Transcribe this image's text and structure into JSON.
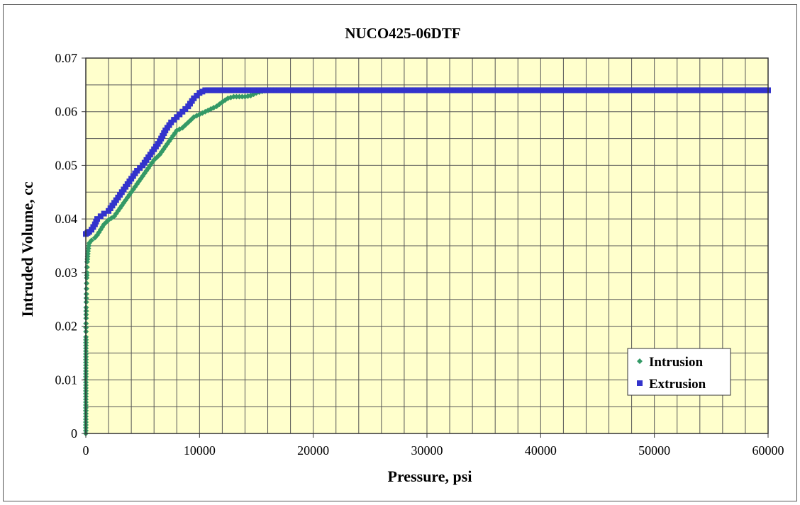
{
  "chart_data": {
    "type": "scatter",
    "title": "NUCO425-06DTF",
    "xlabel": "Pressure, psi",
    "ylabel": "Intruded Volume, cc",
    "xlim": [
      0,
      60000
    ],
    "ylim": [
      0,
      0.07
    ],
    "xticks": [
      "0",
      "10000",
      "20000",
      "30000",
      "40000",
      "50000",
      "60000"
    ],
    "yticks": [
      "0",
      "0.01",
      "0.02",
      "0.03",
      "0.04",
      "0.05",
      "0.06",
      "0.07"
    ],
    "x_gridlines": 30,
    "y_gridlines": 14,
    "grid": true,
    "plot_background": "#ffffcc",
    "legend_position": "bottom-right",
    "series": [
      {
        "name": "Intrusion",
        "color": "#339966",
        "marker": "diamond",
        "points": [
          [
            0,
            0
          ],
          [
            10,
            0.018
          ],
          [
            15,
            0.019
          ],
          [
            20,
            0.0205
          ],
          [
            25,
            0.0215
          ],
          [
            30,
            0.0235
          ],
          [
            40,
            0.0245
          ],
          [
            50,
            0.026
          ],
          [
            60,
            0.027
          ],
          [
            70,
            0.028
          ],
          [
            80,
            0.029
          ],
          [
            90,
            0.0295
          ],
          [
            100,
            0.03
          ],
          [
            110,
            0.031
          ],
          [
            120,
            0.032
          ],
          [
            140,
            0.0325
          ],
          [
            160,
            0.033
          ],
          [
            180,
            0.0335
          ],
          [
            200,
            0.034
          ],
          [
            230,
            0.0345
          ],
          [
            260,
            0.035
          ],
          [
            300,
            0.0355
          ],
          [
            500,
            0.036
          ],
          [
            800,
            0.0365
          ],
          [
            1000,
            0.037
          ],
          [
            1300,
            0.038
          ],
          [
            1600,
            0.039
          ],
          [
            2000,
            0.0398
          ],
          [
            2500,
            0.0405
          ],
          [
            3000,
            0.042
          ],
          [
            3500,
            0.0435
          ],
          [
            4000,
            0.045
          ],
          [
            4500,
            0.0465
          ],
          [
            5000,
            0.048
          ],
          [
            5500,
            0.0495
          ],
          [
            6000,
            0.051
          ],
          [
            6500,
            0.052
          ],
          [
            7000,
            0.0535
          ],
          [
            7500,
            0.055
          ],
          [
            8000,
            0.0565
          ],
          [
            8500,
            0.057
          ],
          [
            9000,
            0.058
          ],
          [
            9500,
            0.059
          ],
          [
            10000,
            0.0595
          ],
          [
            10500,
            0.06
          ],
          [
            11000,
            0.0605
          ],
          [
            11500,
            0.061
          ],
          [
            12000,
            0.0618
          ],
          [
            12500,
            0.0625
          ],
          [
            13000,
            0.0628
          ],
          [
            13500,
            0.0628
          ],
          [
            14000,
            0.0628
          ],
          [
            14500,
            0.063
          ],
          [
            15000,
            0.0635
          ],
          [
            15500,
            0.0638
          ],
          [
            16000,
            0.064
          ],
          [
            17000,
            0.064
          ],
          [
            18000,
            0.064
          ],
          [
            20000,
            0.064
          ],
          [
            22000,
            0.064
          ],
          [
            25000,
            0.064
          ],
          [
            28000,
            0.064
          ],
          [
            30000,
            0.064
          ],
          [
            33000,
            0.064
          ],
          [
            35000,
            0.064
          ]
        ]
      },
      {
        "name": "Extrusion",
        "color": "#3333cc",
        "marker": "square",
        "points": [
          [
            0,
            0.0372
          ],
          [
            150,
            0.0374
          ],
          [
            300,
            0.0376
          ],
          [
            500,
            0.038
          ],
          [
            800,
            0.039
          ],
          [
            1000,
            0.04
          ],
          [
            1300,
            0.0405
          ],
          [
            1600,
            0.041
          ],
          [
            2000,
            0.0415
          ],
          [
            2500,
            0.043
          ],
          [
            3000,
            0.0445
          ],
          [
            3500,
            0.046
          ],
          [
            4000,
            0.0475
          ],
          [
            4500,
            0.049
          ],
          [
            5000,
            0.05
          ],
          [
            5500,
            0.0515
          ],
          [
            6000,
            0.053
          ],
          [
            6500,
            0.0545
          ],
          [
            7000,
            0.0565
          ],
          [
            7500,
            0.058
          ],
          [
            8000,
            0.059
          ],
          [
            8500,
            0.06
          ],
          [
            9000,
            0.061
          ],
          [
            9500,
            0.0625
          ],
          [
            10000,
            0.0635
          ],
          [
            10500,
            0.064
          ],
          [
            11000,
            0.064
          ],
          [
            12000,
            0.064
          ],
          [
            14000,
            0.064
          ],
          [
            16000,
            0.064
          ],
          [
            18000,
            0.064
          ],
          [
            20000,
            0.064
          ],
          [
            25000,
            0.064
          ],
          [
            30000,
            0.064
          ],
          [
            35000,
            0.064
          ],
          [
            40000,
            0.064
          ],
          [
            45000,
            0.064
          ],
          [
            50000,
            0.064
          ],
          [
            55000,
            0.064
          ],
          [
            57500,
            0.064
          ],
          [
            58000,
            0.064
          ],
          [
            58500,
            0.064
          ],
          [
            59000,
            0.064
          ],
          [
            59500,
            0.064
          ],
          [
            60000,
            0.064
          ]
        ]
      }
    ]
  }
}
